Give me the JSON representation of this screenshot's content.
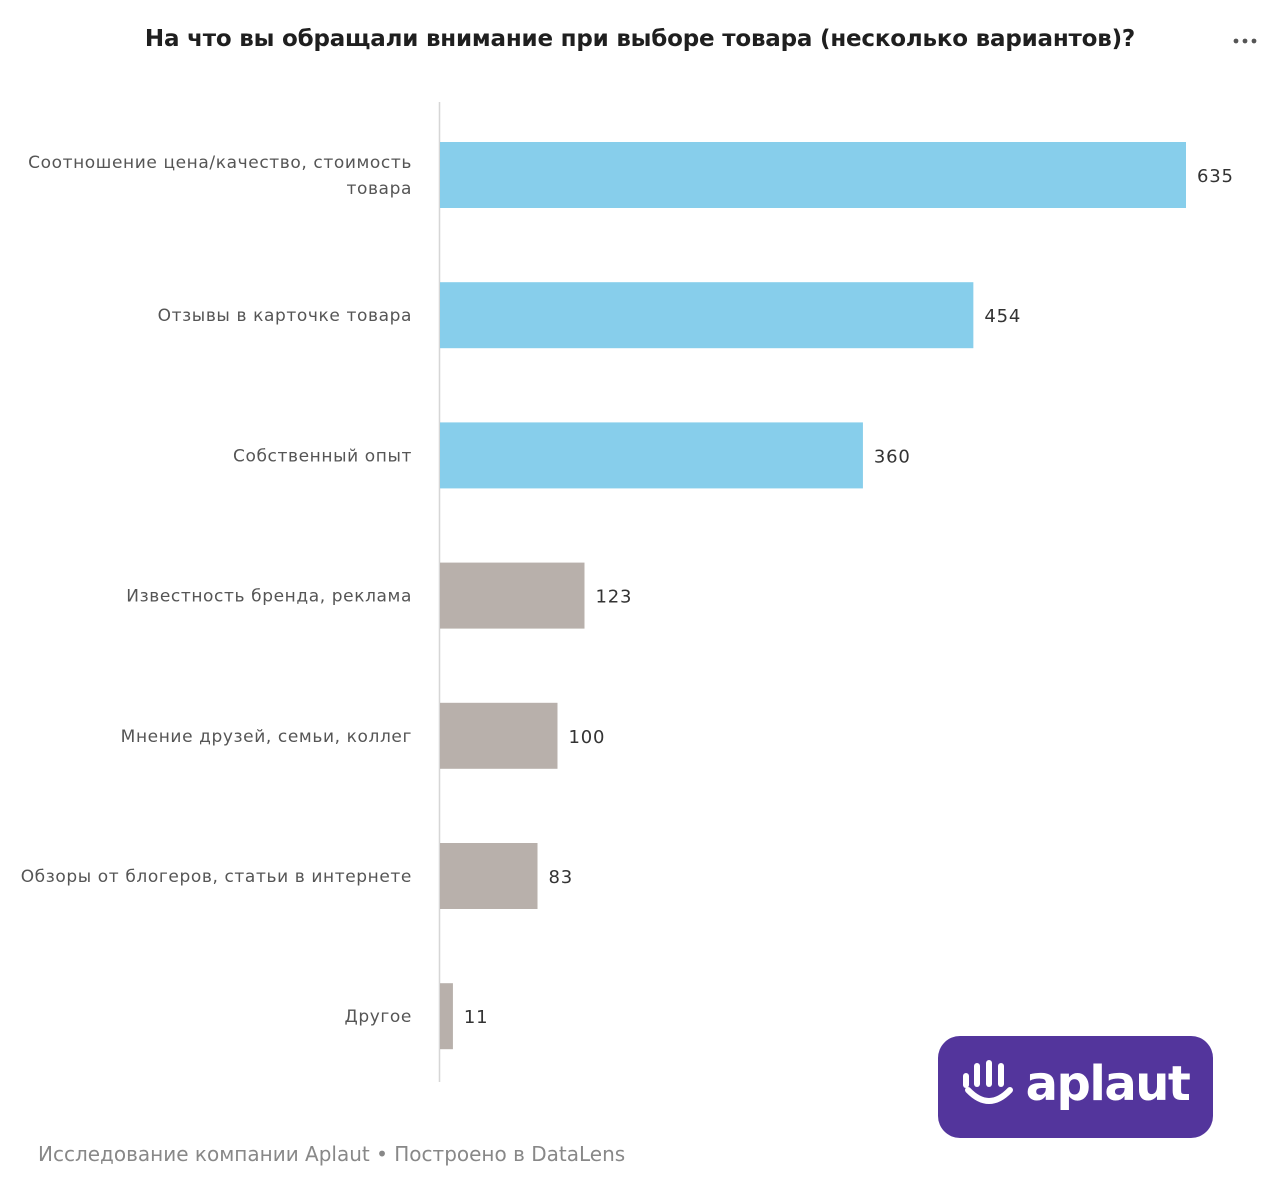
{
  "title": "На что вы обращали внимание при выборе товара (несколько вариантов)?",
  "menu_icon": "more-horizontal-icon",
  "footer": "Исследование компании Aplaut • Построено в DataLens",
  "logo": {
    "text": "aplaut",
    "icon": "hand-wave-icon",
    "background": "#53359c"
  },
  "colors": {
    "highlight": "#87ceeb",
    "other": "#b8b0ab"
  },
  "chart_data": {
    "type": "bar",
    "orientation": "horizontal",
    "categories": [
      [
        "Соотношение цена/качество, стоимость",
        "товара"
      ],
      [
        "Отзывы в карточке товара"
      ],
      [
        "Собственный опыт"
      ],
      [
        "Известность бренда, реклама"
      ],
      [
        "Мнение друзей, семьи, коллег"
      ],
      [
        "Обзоры от блогеров, статьи в интернете"
      ],
      [
        "Другое"
      ]
    ],
    "values": [
      635,
      454,
      360,
      123,
      100,
      83,
      11
    ],
    "highlighted": [
      true,
      true,
      true,
      false,
      false,
      false,
      false
    ],
    "xlim": [
      0,
      635
    ],
    "grid": false,
    "legend": "none",
    "data_labels": true
  }
}
